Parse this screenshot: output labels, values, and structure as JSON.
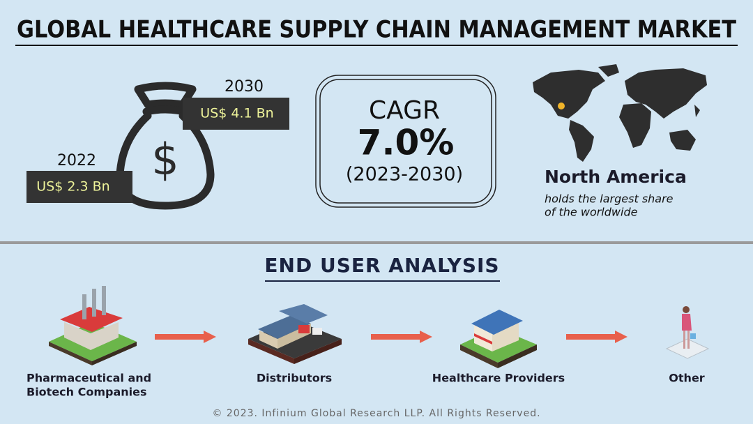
{
  "header": {
    "title": "GLOBAL HEALTHCARE SUPPLY CHAIN MANAGEMENT MARKET"
  },
  "market_size": [
    {
      "year": "2022",
      "value": "US$ 2.3 Bn"
    },
    {
      "year": "2030",
      "value": "US$ 4.1 Bn"
    }
  ],
  "cagr": {
    "label": "CAGR",
    "value": "7.0%",
    "period": "(2023-2030)"
  },
  "region": {
    "name": "North America",
    "note_lines": [
      "holds the largest share",
      "of the worldwide"
    ]
  },
  "end_user": {
    "title": "END USER ANALYSIS",
    "items": [
      {
        "label_lines": [
          "Pharmaceutical and",
          "Biotech Companies"
        ]
      },
      {
        "label_lines": [
          "Distributors"
        ]
      },
      {
        "label_lines": [
          "Healthcare Providers"
        ]
      },
      {
        "label_lines": [
          "Other"
        ]
      }
    ]
  },
  "footer": {
    "text": "© 2023. Infinium Global Research LLP. All Rights Reserved."
  }
}
